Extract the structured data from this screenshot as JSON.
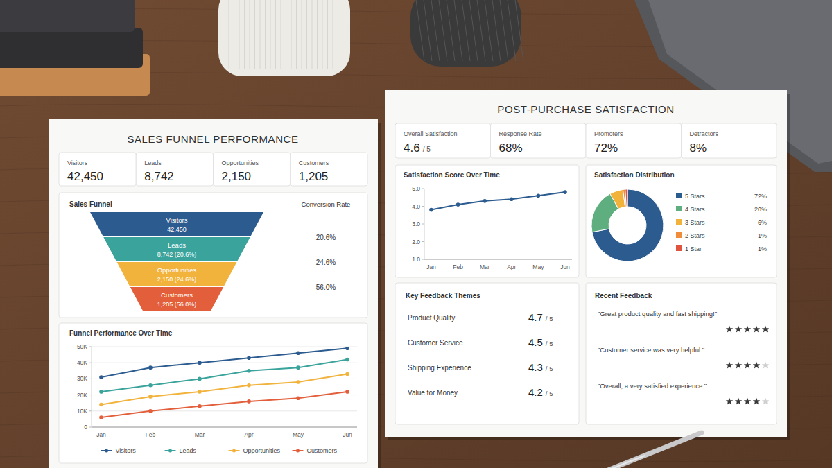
{
  "sales_funnel_sheet": {
    "title": "SALES FUNNEL PERFORMANCE",
    "kpis": [
      {
        "label": "Visitors",
        "value": "42,450"
      },
      {
        "label": "Leads",
        "value": "8,742"
      },
      {
        "label": "Opportunities",
        "value": "2,150"
      },
      {
        "label": "Customers",
        "value": "1,205"
      }
    ]
  },
  "satisfaction_sheet": {
    "title": "POST-PURCHASE SATISFACTION",
    "kpis": [
      {
        "label": "Overall Satisfaction",
        "value": "4.6",
        "suffix": "/ 5"
      },
      {
        "label": "Response Rate",
        "value": "68%"
      },
      {
        "label": "Promoters",
        "value": "72%"
      },
      {
        "label": "Detractors",
        "value": "8%"
      }
    ],
    "feedback_themes": {
      "title": "Key Feedback Themes",
      "items": [
        {
          "label": "Product Quality",
          "score": "4.7",
          "scale": "/ 5"
        },
        {
          "label": "Customer Service",
          "score": "4.5",
          "scale": "/ 5"
        },
        {
          "label": "Shipping Experience",
          "score": "4.3",
          "scale": "/ 5"
        },
        {
          "label": "Value for Money",
          "score": "4.2",
          "scale": "/ 5"
        }
      ]
    },
    "recent_feedback": {
      "title": "Recent Feedback",
      "stars_max": 5,
      "items": [
        {
          "quote": "\"Great product quality and fast shipping!\"",
          "rating": 5
        },
        {
          "quote": "\"Customer service was very helpful.\"",
          "rating": 4
        },
        {
          "quote": "\"Overall, a very satisfied experience.\"",
          "rating": 4
        }
      ]
    }
  },
  "chart_data": [
    {
      "type": "funnel",
      "title": "Sales Funnel",
      "categories": [
        "Visitors",
        "Leads",
        "Opportunities",
        "Customers"
      ],
      "values": [
        42450,
        8742,
        2150,
        1205
      ],
      "value_labels": [
        "42,450",
        "8,742 (20.6%)",
        "2,150 (24.6%)",
        "1,205 (56.0%)"
      ],
      "colors": [
        "#2b5b8f",
        "#3aa39b",
        "#f2b33d",
        "#e35f3b"
      ],
      "data_labels": true,
      "conversion_title": "Conversion Rate",
      "conversion_rates": [
        20.6,
        24.6,
        56.0
      ],
      "conversion_rate_labels": [
        "20.6%",
        "24.6%",
        "56.0%"
      ]
    },
    {
      "type": "line",
      "title": "Funnel Performance Over Time",
      "categories": [
        "Jan",
        "Feb",
        "Mar",
        "Apr",
        "May",
        "Jun"
      ],
      "series": [
        {
          "name": "Visitors",
          "color": "#2b5b8f",
          "marker": "circle",
          "values": [
            31000,
            37000,
            40000,
            43000,
            46000,
            49000
          ]
        },
        {
          "name": "Leads",
          "color": "#3aa39b",
          "marker": "circle",
          "values": [
            22000,
            26000,
            30000,
            35000,
            37000,
            42000
          ]
        },
        {
          "name": "Opportunities",
          "color": "#f2b33d",
          "marker": "circle",
          "values": [
            14000,
            19000,
            22000,
            26000,
            28000,
            33000
          ]
        },
        {
          "name": "Customers",
          "color": "#e35f3b",
          "marker": "circle",
          "values": [
            6000,
            10000,
            13000,
            16000,
            18000,
            22000
          ]
        }
      ],
      "ylim": [
        0,
        50000
      ],
      "yticks": [
        0,
        {
          "value": 10000,
          "label": "10K"
        },
        {
          "value": 20000,
          "label": "20K"
        },
        {
          "value": 30000,
          "label": "30K"
        },
        {
          "value": 40000,
          "label": "40K"
        },
        {
          "value": 50000,
          "label": "50K"
        }
      ],
      "grid": true,
      "legend": "bottom"
    },
    {
      "type": "line",
      "title": "Satisfaction Score Over Time",
      "categories": [
        "Jan",
        "Feb",
        "Mar",
        "Apr",
        "May",
        "Jun"
      ],
      "values": [
        3.8,
        4.1,
        4.3,
        4.4,
        4.6,
        4.8
      ],
      "color": "#2b5b8f",
      "marker": "circle",
      "ylim": [
        1,
        5
      ],
      "yticks": [
        {
          "value": 1,
          "label": "1.0"
        },
        {
          "value": 2,
          "label": "2.0"
        },
        {
          "value": 3,
          "label": "3.0"
        },
        {
          "value": 4,
          "label": "4.0"
        },
        {
          "value": 5,
          "label": "5.0"
        }
      ],
      "grid": false
    },
    {
      "type": "donut",
      "title": "Satisfaction Distribution",
      "categories": [
        "5 Stars",
        "4 Stars",
        "3 Stars",
        "2 Stars",
        "1 Star"
      ],
      "values": [
        72,
        20,
        6,
        1,
        1
      ],
      "value_labels": [
        "72%",
        "20%",
        "6%",
        "1%",
        "1%"
      ],
      "colors": [
        "#2b5b8f",
        "#5fae80",
        "#f2b33d",
        "#f08c3a",
        "#e0533f"
      ],
      "legend": "right"
    }
  ]
}
